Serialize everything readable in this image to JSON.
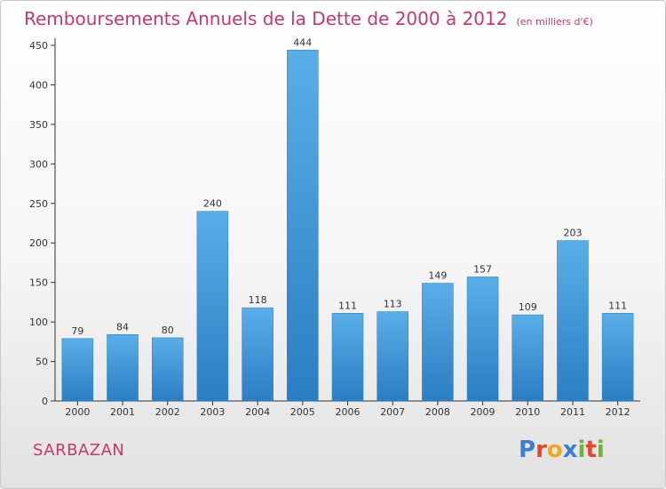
{
  "header": {
    "title": "Remboursements Annuels de la Dette de 2000 à 2012",
    "unit": "(en milliers d'€)"
  },
  "footer": {
    "commune": "SARBAZAN",
    "brand": "Proxiti",
    "brand_colors": [
      "#3a7fd0",
      "#e8452c",
      "#f2a81d",
      "#3a7fd0",
      "#6db33f",
      "#e8452c",
      "#6db33f"
    ]
  },
  "colors": {
    "title": "#c8386a",
    "bar_top": "#5aaee8",
    "bar_bottom": "#2a7ec2",
    "axis": "#333333"
  },
  "chart_data": {
    "type": "bar",
    "title": "Remboursements Annuels de la Dette de 2000 à 2012",
    "xlabel": "",
    "ylabel": "",
    "categories": [
      "2000",
      "2001",
      "2002",
      "2003",
      "2004",
      "2005",
      "2006",
      "2007",
      "2008",
      "2009",
      "2010",
      "2011",
      "2012"
    ],
    "values": [
      79,
      84,
      80,
      240,
      118,
      444,
      111,
      113,
      149,
      157,
      109,
      203,
      111
    ],
    "ylim": [
      0,
      450
    ],
    "yticks": [
      0,
      50,
      100,
      150,
      200,
      250,
      300,
      350,
      400,
      450
    ],
    "grid": false,
    "legend": "none"
  }
}
